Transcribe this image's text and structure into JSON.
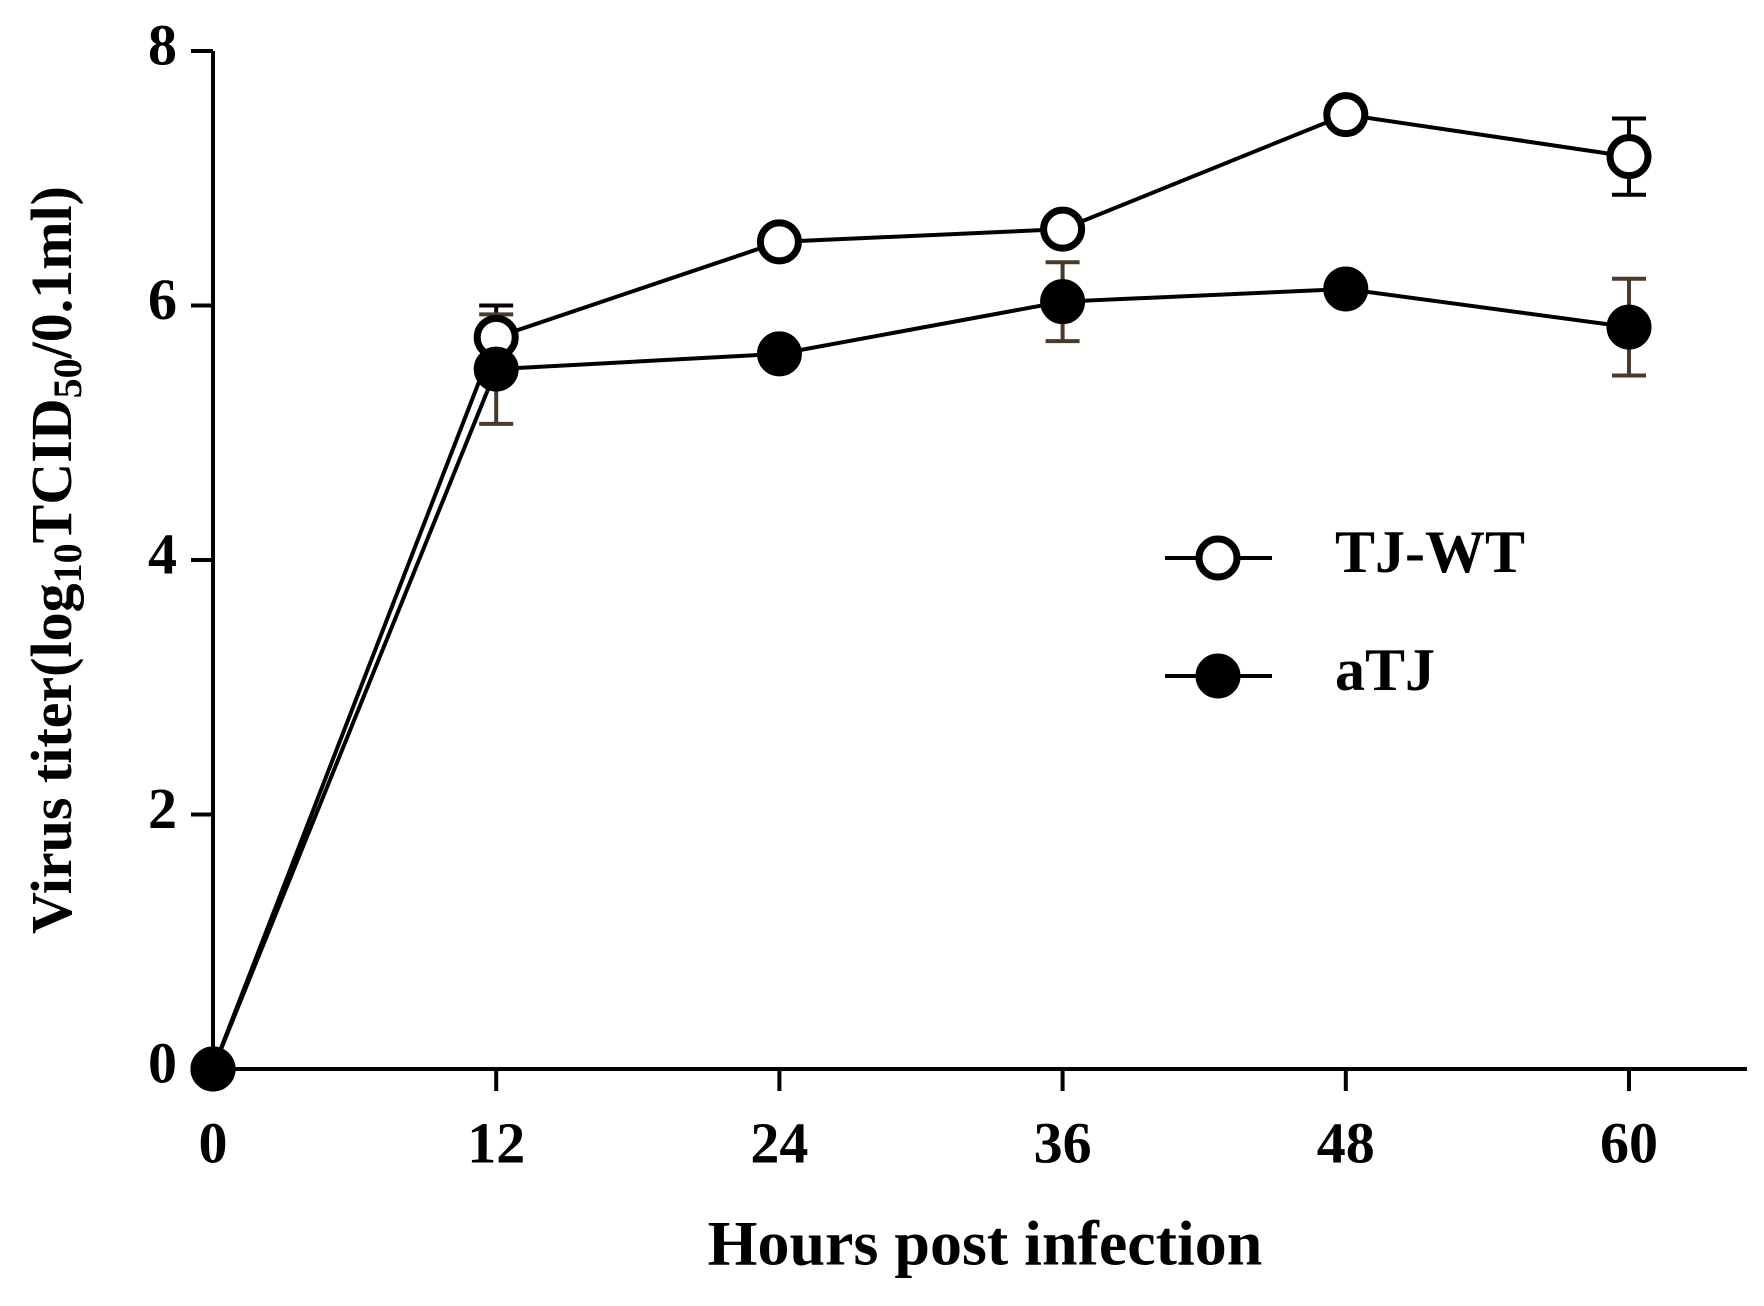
{
  "chart_data": {
    "type": "line",
    "x_label": "Hours post infection",
    "y_label_parts": [
      {
        "text": "Virus titer(log"
      },
      {
        "text": "10",
        "sub": true
      },
      {
        "text": "TCID"
      },
      {
        "text": "50",
        "sub": true
      },
      {
        "text": "/0.1ml)"
      }
    ],
    "x": [
      0,
      12,
      24,
      36,
      48,
      60
    ],
    "series": [
      {
        "name": "TJ-WT",
        "color": "#000000",
        "marker": "open",
        "error_color": "#000000",
        "values": [
          0,
          5.75,
          6.5,
          6.6,
          7.5,
          7.17
        ],
        "errors": [
          null,
          0.25,
          null,
          null,
          null,
          0.3
        ]
      },
      {
        "name": "aTJ",
        "color": "#000000",
        "marker": "filled",
        "error_color": "#4a3a2a",
        "values": [
          0,
          5.5,
          5.62,
          6.03,
          6.13,
          5.83
        ],
        "errors": [
          null,
          0.43,
          null,
          0.31,
          null,
          0.38
        ]
      }
    ],
    "xlim": [
      0,
      65
    ],
    "xticks": [
      0,
      12,
      24,
      36,
      48,
      60
    ],
    "ylim": [
      0,
      8
    ],
    "yticks": [
      0,
      2,
      4,
      6,
      8
    ],
    "grid": false,
    "legend": "right"
  }
}
